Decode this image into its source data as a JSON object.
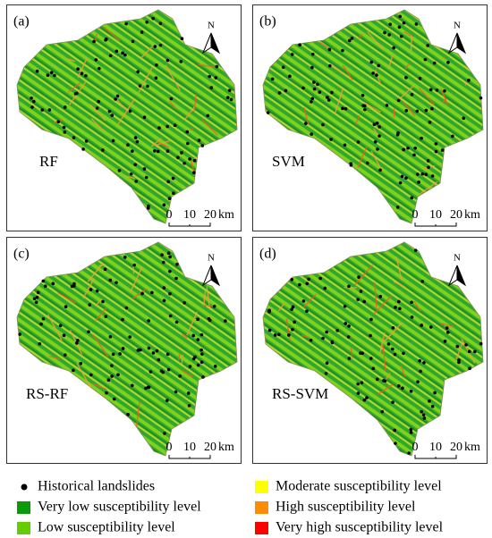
{
  "panels": [
    {
      "label": "(a)",
      "model": "RF"
    },
    {
      "label": "(b)",
      "model": "SVM"
    },
    {
      "label": "(c)",
      "model": "RS-RF"
    },
    {
      "label": "(d)",
      "model": "RS-SVM"
    }
  ],
  "north": "N",
  "scale_bar": {
    "ticks": [
      "0",
      "10",
      "20"
    ],
    "unit": "km"
  },
  "legend": [
    {
      "label": "Historical landslides",
      "color": "#000000",
      "marker": "circle"
    },
    {
      "label": "Very low susceptibility level",
      "color": "#0a9a0a",
      "marker": "square"
    },
    {
      "label": "Low susceptibility level",
      "color": "#66cc00",
      "marker": "square"
    },
    {
      "label": "Moderate susceptibility level",
      "color": "#ffff00",
      "marker": "square"
    },
    {
      "label": "High susceptibility level",
      "color": "#ff8c00",
      "marker": "square"
    },
    {
      "label": "Very high susceptibility level",
      "color": "#ff0000",
      "marker": "square"
    }
  ]
}
